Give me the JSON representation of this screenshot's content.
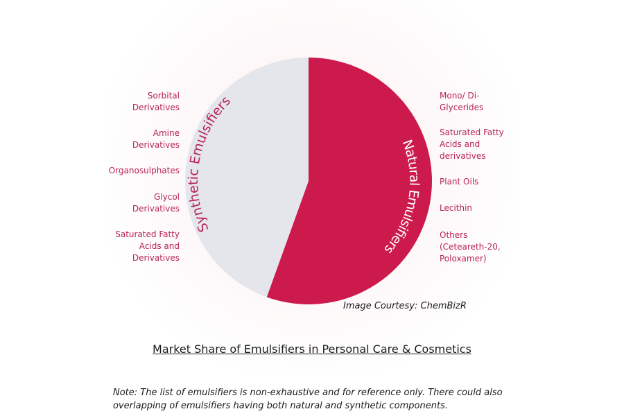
{
  "chart_data": {
    "type": "pie",
    "title": "Market Share of Emulsifiers in Personal Care & Cosmetics",
    "slices": [
      {
        "name": "Natural Emulsifiers",
        "value": 55.5,
        "color": "#cc1a4d"
      },
      {
        "name": "Synthetic Emulsifiers",
        "value": 44.5,
        "color": "#e4e6ec"
      }
    ],
    "slice_text_color": "#b8225a",
    "synthetic_items": [
      "Sorbital Derivatives",
      "Amine Derivatives",
      "Organosulphates",
      "Glycol Derivatives",
      "Saturated Fatty Acids and Derivatives"
    ],
    "natural_items": [
      "Mono/ Di-Glycerides",
      "Saturated Fatty Acids and derivatives",
      "Plant Oils",
      "Lecithin",
      "Others (Ceteareth-20, Poloxamer)"
    ]
  },
  "synthetic_labels": [
    [
      "Sorbital",
      "Derivatives"
    ],
    [
      "Amine",
      "Derivatives"
    ],
    [
      "Organosulphates"
    ],
    [
      "Glycol",
      "Derivatives"
    ],
    [
      "Saturated Fatty",
      "Acids and",
      "Derivatives"
    ]
  ],
  "natural_labels": [
    [
      "Mono/ Di-",
      "Glycerides"
    ],
    [
      "Saturated Fatty",
      "Acids and",
      "derivatives"
    ],
    [
      "Plant Oils"
    ],
    [
      "Lecithin"
    ],
    [
      "Others",
      "(Ceteareth-20,",
      "Poloxamer)"
    ]
  ],
  "courtesy": "Image Courtesy: ChemBizR",
  "note_lines": [
    "Note:  The list of emulsifiers is non-exhaustive and for reference only. There could also",
    "overlapping of emulsifiers having both natural and synthetic components."
  ]
}
